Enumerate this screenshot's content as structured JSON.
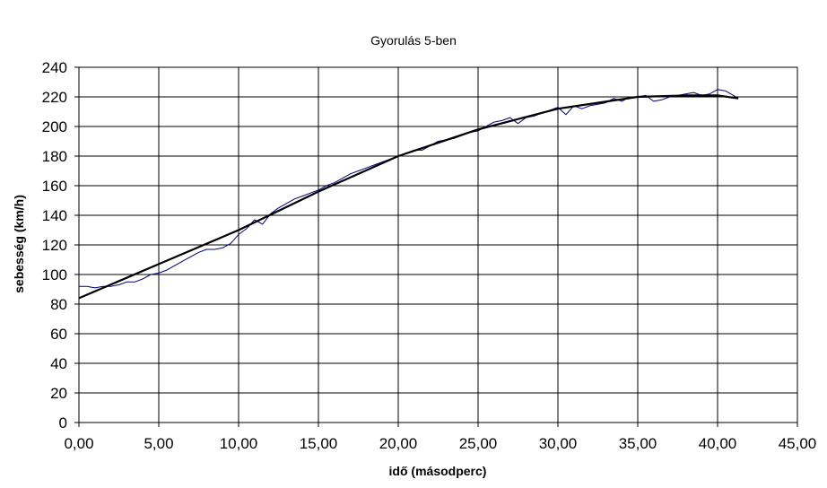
{
  "chart_data": {
    "type": "line",
    "title": "Gyorulás 5-ben",
    "xlabel": "idő (másodperc)",
    "ylabel": "sebesség (km/h)",
    "xlim": [
      0,
      45
    ],
    "ylim": [
      0,
      240
    ],
    "x_ticks": [
      "0,00",
      "5,00",
      "10,00",
      "15,00",
      "20,00",
      "25,00",
      "30,00",
      "35,00",
      "40,00",
      "45,00"
    ],
    "y_ticks": [
      "0",
      "20",
      "40",
      "60",
      "80",
      "100",
      "120",
      "140",
      "160",
      "180",
      "200",
      "220",
      "240"
    ],
    "grid": true,
    "legend": "none",
    "series": [
      {
        "style": "thin",
        "color": "#000080",
        "x": [
          0.0,
          0.5,
          1.0,
          1.5,
          2.0,
          2.5,
          3.0,
          3.5,
          4.0,
          4.5,
          5.0,
          5.5,
          6.0,
          6.5,
          7.0,
          7.5,
          8.0,
          8.5,
          9.0,
          9.5,
          10.0,
          10.5,
          11.0,
          11.5,
          12.0,
          12.5,
          13.0,
          13.5,
          14.0,
          14.5,
          15.0,
          15.5,
          16.0,
          16.5,
          17.0,
          17.5,
          18.0,
          18.5,
          19.0,
          19.5,
          20.0,
          20.5,
          21.0,
          21.5,
          22.0,
          22.5,
          23.0,
          23.5,
          24.0,
          24.5,
          25.0,
          25.5,
          26.0,
          26.5,
          27.0,
          27.5,
          28.0,
          28.5,
          29.0,
          29.5,
          30.0,
          30.5,
          31.0,
          31.5,
          32.0,
          32.5,
          33.0,
          33.5,
          34.0,
          34.5,
          35.0,
          35.5,
          36.0,
          36.5,
          37.0,
          37.5,
          38.0,
          38.5,
          39.0,
          39.5,
          40.0,
          40.5,
          41.0,
          41.3
        ],
        "y": [
          92,
          92,
          91,
          92,
          92,
          93,
          95,
          95,
          97,
          100,
          101,
          103,
          106,
          109,
          112,
          115,
          117,
          117,
          118,
          121,
          127,
          131,
          137,
          134,
          141,
          145,
          148,
          151,
          153,
          155,
          157,
          160,
          162,
          165,
          168,
          170,
          172,
          174,
          176,
          178,
          180,
          182,
          184,
          184,
          187,
          190,
          191,
          192,
          194,
          196,
          197,
          200,
          203,
          204,
          206,
          202,
          206,
          207,
          209,
          211,
          213,
          208,
          214,
          212,
          214,
          215,
          216,
          219,
          217,
          220,
          220,
          221,
          217,
          218,
          220,
          221,
          222,
          223,
          221,
          222,
          225,
          224,
          221,
          219
        ]
      },
      {
        "style": "thick",
        "color": "#000000",
        "x": [
          0,
          5,
          10,
          15,
          20,
          25,
          30,
          35,
          38,
          40,
          41.3
        ],
        "y": [
          84,
          107,
          130,
          156,
          180,
          198,
          212,
          220,
          221,
          221,
          219
        ]
      }
    ]
  }
}
